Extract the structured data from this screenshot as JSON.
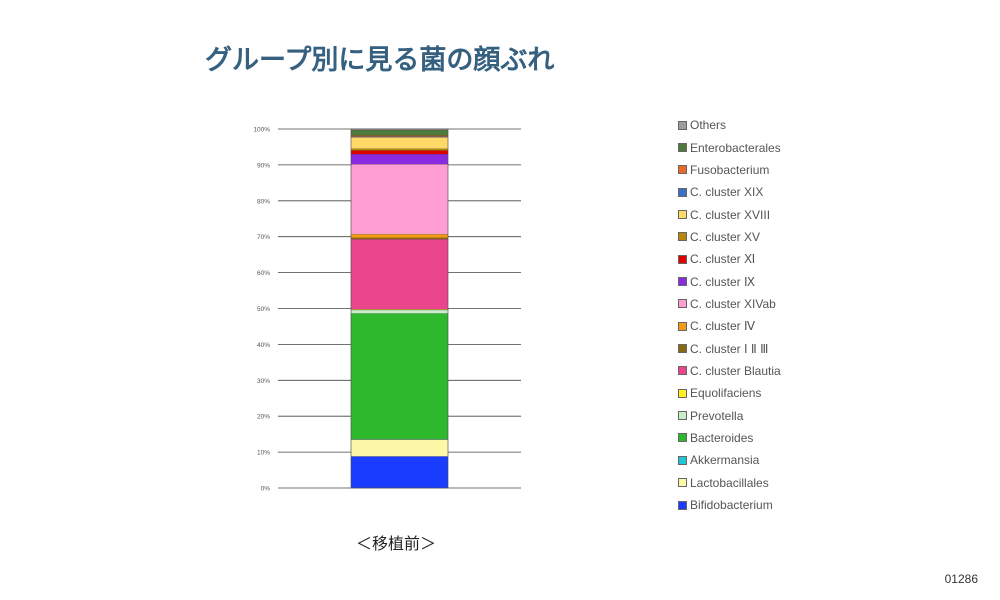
{
  "slide": {
    "title": "グループ別に見る菌の顔ぶれ",
    "caption": "＜移植前＞",
    "page_number": "01286"
  },
  "chart_data": {
    "type": "bar",
    "stacked": true,
    "percent": true,
    "categories": [
      "移植前"
    ],
    "ylim": [
      0,
      100
    ],
    "y_ticks": [
      "0%",
      "10%",
      "20%",
      "30%",
      "40%",
      "50%",
      "60%",
      "70%",
      "80%",
      "90%",
      "100%"
    ],
    "grid": true,
    "legend_position": "right",
    "series": [
      {
        "name": "Others",
        "values": [
          0.3
        ],
        "color": "#9e9e9e"
      },
      {
        "name": "Enterobacterales",
        "values": [
          1.5
        ],
        "color": "#4e7a3a"
      },
      {
        "name": "Fusobacterium",
        "values": [
          0.3
        ],
        "color": "#e8692a"
      },
      {
        "name": "C. cluster XIX",
        "values": [
          0.2
        ],
        "color": "#3d6ec9"
      },
      {
        "name": "C. cluster XVIII",
        "values": [
          3.2
        ],
        "color": "#ffd966"
      },
      {
        "name": "C. cluster XV",
        "values": [
          0.5
        ],
        "color": "#b8860b"
      },
      {
        "name": "C. cluster Ⅺ",
        "values": [
          1.0
        ],
        "color": "#e00000"
      },
      {
        "name": "C. cluster Ⅸ",
        "values": [
          2.8
        ],
        "color": "#8a2be2"
      },
      {
        "name": "C. cluster XIVab",
        "values": [
          19.5
        ],
        "color": "#ff9ed2"
      },
      {
        "name": "C. cluster Ⅳ",
        "values": [
          1.0
        ],
        "color": "#f39c12"
      },
      {
        "name": "C. cluster Ⅰ Ⅱ Ⅲ",
        "values": [
          0.4
        ],
        "color": "#8b6914"
      },
      {
        "name": "C. cluster Blautia",
        "values": [
          19.5
        ],
        "color": "#e8458c"
      },
      {
        "name": "Equolifaciens",
        "values": [
          0.2
        ],
        "color": "#ffee22"
      },
      {
        "name": "Prevotella",
        "values": [
          1.0
        ],
        "color": "#c8eec8"
      },
      {
        "name": "Bacteroides",
        "values": [
          35.0
        ],
        "color": "#2eb82e"
      },
      {
        "name": "Akkermansia",
        "values": [
          0.1
        ],
        "color": "#22c5d8"
      },
      {
        "name": "Lactobacillales",
        "values": [
          4.7
        ],
        "color": "#fcf8a8"
      },
      {
        "name": "Bifidobacterium",
        "values": [
          8.8
        ],
        "color": "#1a3cff"
      }
    ]
  }
}
